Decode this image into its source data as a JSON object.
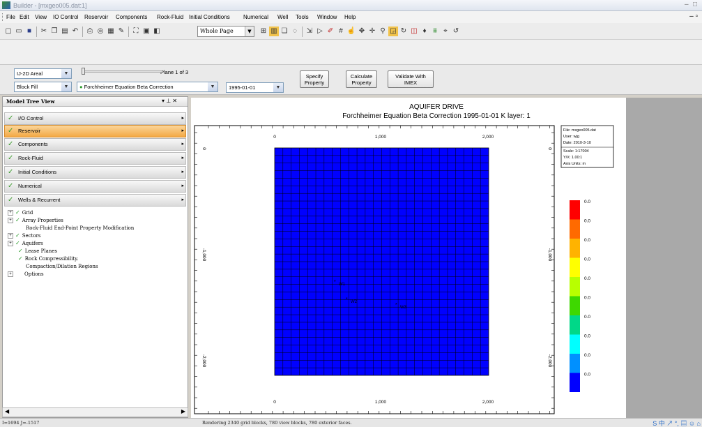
{
  "window": {
    "title": "Builder - [mxgeo005.dat:1]",
    "min": "–",
    "max": "□",
    "mdi_min": "– ▫"
  },
  "menu": [
    "File",
    "Edit",
    "View",
    "IO Control",
    "Reservoir",
    "Components",
    "Rock-Fluid",
    "Initial Conditions",
    "Numerical",
    "Well",
    "Tools",
    "Window",
    "Help"
  ],
  "toolbar": {
    "zoom_value": "Whole Page",
    "icons": [
      "new",
      "open",
      "save",
      "cut",
      "copy",
      "paste",
      "undo",
      "print",
      "preview",
      "pen",
      "zoom",
      "frame",
      "home",
      "pointer",
      "zoom-in"
    ]
  },
  "controls": {
    "view_select": "IJ-2D Areal",
    "fill_select": "Block Fill",
    "property_select": "Forchheimer Equation Beta Correction",
    "date_select": "1995-01-01",
    "plane_label": "Plane 1 of 3",
    "specify_btn": "Specify Property",
    "calculate_btn": "Calculate Property",
    "validate_btn": "Validate With IMEX"
  },
  "model_tree": {
    "title": "Model Tree View",
    "pin": "▾ ⊥ ✕",
    "sections": [
      {
        "label": "I/O Control",
        "selected": false
      },
      {
        "label": "Reservoir",
        "selected": true
      },
      {
        "label": "Components",
        "selected": false
      },
      {
        "label": "Rock-Fluid",
        "selected": false
      },
      {
        "label": "Initial Conditions",
        "selected": false
      },
      {
        "label": "Numerical",
        "selected": false
      },
      {
        "label": "Wells & Recurrent",
        "selected": false
      }
    ],
    "tree": [
      {
        "label": "Grid",
        "expand": "+",
        "check": true,
        "indent": 0
      },
      {
        "label": "Array Properties",
        "expand": "+",
        "check": true,
        "indent": 0
      },
      {
        "label": "Rock-Fluid End-Point Property Modification",
        "expand": "",
        "check": false,
        "indent": 1
      },
      {
        "label": "Sectors",
        "expand": "+",
        "check": true,
        "indent": 0
      },
      {
        "label": "Aquifers",
        "expand": "+",
        "check": true,
        "indent": 0
      },
      {
        "label": "Lease Planes",
        "expand": "",
        "check": true,
        "indent": 1
      },
      {
        "label": "Rock Compressibility.",
        "expand": "",
        "check": true,
        "indent": 1
      },
      {
        "label": "Compaction/Dilation Regions",
        "expand": "",
        "check": false,
        "indent": 1
      },
      {
        "label": "Options",
        "expand": "+",
        "check": false,
        "indent": 0
      }
    ]
  },
  "plot": {
    "title": "AQUIFER DRIVE",
    "subtitle": "Forchheimer Equation Beta Correction 1995-01-01      K layer: 1",
    "x_ticks_top": [
      "0",
      "1,000",
      "2,000"
    ],
    "x_ticks_bottom": [
      "0",
      "1,000",
      "2,000"
    ],
    "y_ticks_left": [
      "0",
      "-1,000",
      "-2,000"
    ],
    "y_ticks_right": [
      "0",
      "-1,000",
      "-2,000"
    ],
    "info": [
      "File: mxgeo005.dat",
      "User: wjg",
      "Date: 2010-3-10",
      "Scale: 1:17004",
      "Y/X: 1.00:1",
      "Axis Units: m"
    ],
    "wells": [
      "W1",
      "W2",
      "W3"
    ],
    "legend_values": [
      "0.0",
      "0.0",
      "0.0",
      "0.0",
      "0.0",
      "0.0",
      "0.0",
      "0.0",
      "0.0",
      "0.0"
    ],
    "legend_colors": [
      "#ff0000",
      "#ff6a00",
      "#ffb300",
      "#ffff00",
      "#b8ff00",
      "#3ed800",
      "#00d888",
      "#00ffff",
      "#0090ff",
      "#0000ff"
    ],
    "grid_fill": "#0000ff"
  },
  "status": {
    "coords": "I=1694 J=-1517",
    "message": "Rendering 2340 grid blocks, 780 view blocks, 780 exterior faces.",
    "tray": "S 中 ↗ °, ▤ ☺ ⌂"
  }
}
